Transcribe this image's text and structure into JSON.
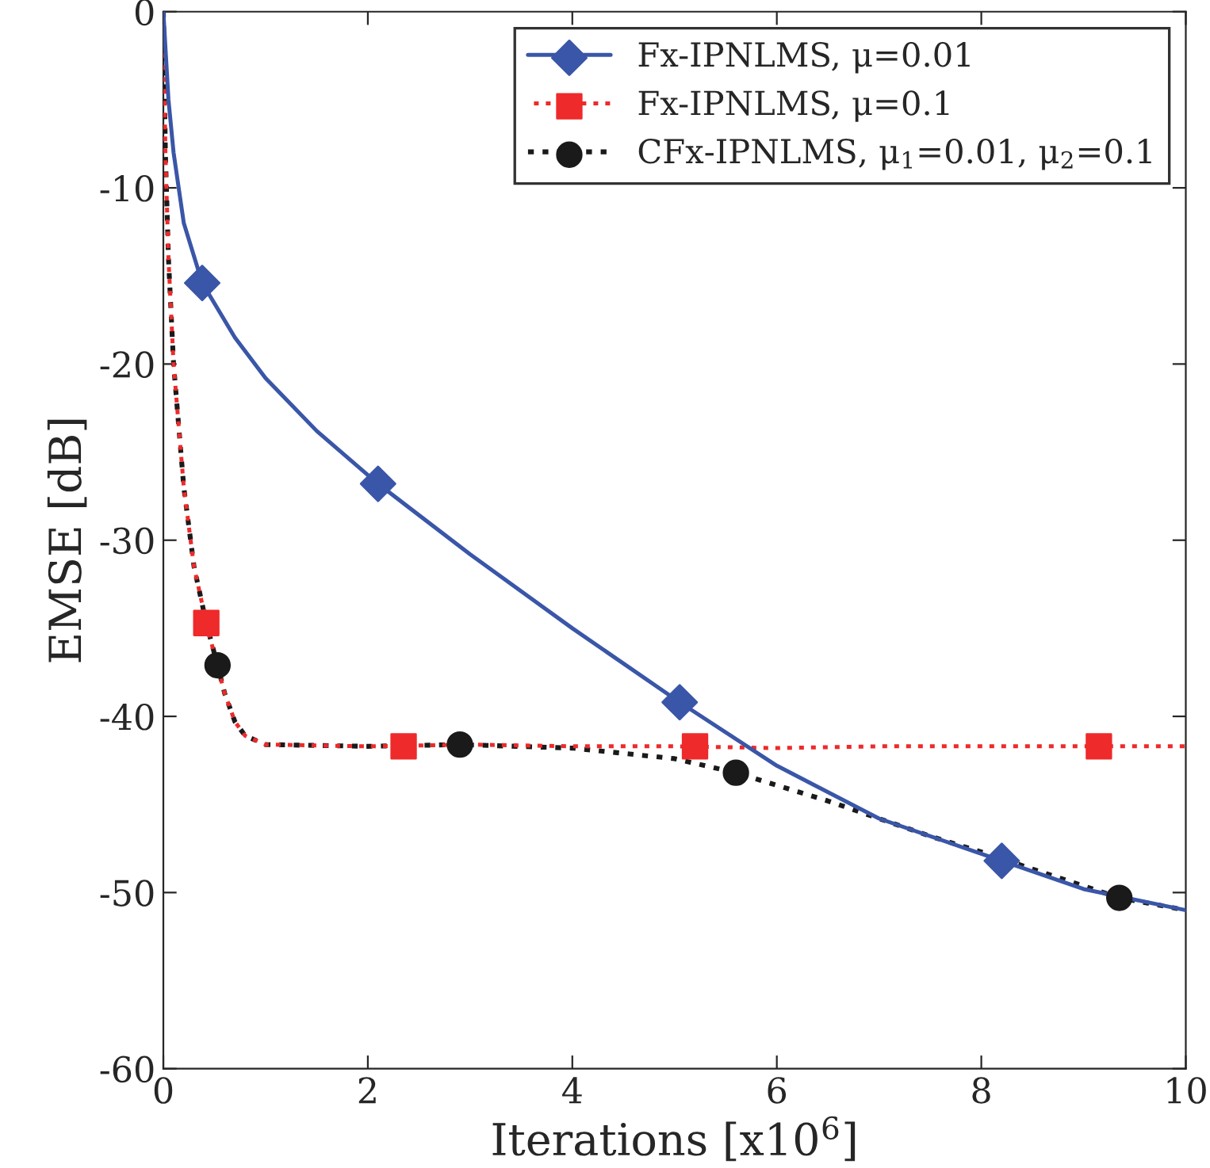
{
  "chart_data": {
    "type": "line",
    "xlabel": "Iterations [x10$^{6}$]",
    "ylabel": "EMSE [dB]",
    "xlim": [
      0,
      10
    ],
    "ylim": [
      -60,
      0
    ],
    "xticks": [
      0,
      2,
      4,
      6,
      8,
      10
    ],
    "yticks": [
      -60,
      -50,
      -40,
      -30,
      -20,
      -10,
      0
    ],
    "grid": false,
    "legend": "top right",
    "series": [
      {
        "name": "Fx-IPNLMS, μ=0.01",
        "color": "#3a56a8",
        "line_style": "solid",
        "x": [
          0,
          0.05,
          0.1,
          0.2,
          0.38,
          0.7,
          1.0,
          1.5,
          2.1,
          3,
          4,
          5.05,
          6,
          7,
          8.2,
          9,
          10
        ],
        "values": [
          0,
          -5,
          -8,
          -12,
          -15.4,
          -18.5,
          -20.8,
          -23.8,
          -26.8,
          -30.8,
          -35,
          -39.2,
          -42.8,
          -45.8,
          -48.2,
          -49.8,
          -51
        ]
      },
      {
        "name": "Fx-IPNLMS, μ=0.1",
        "color": "#ee2a2a",
        "line_style": "dotted",
        "x": [
          0,
          0.02,
          0.05,
          0.1,
          0.2,
          0.3,
          0.42,
          0.5,
          0.6,
          0.7,
          0.8,
          1.0,
          2,
          3,
          4,
          5,
          6,
          7,
          8,
          9,
          10
        ],
        "values": [
          0,
          -8,
          -14,
          -20,
          -27,
          -31.5,
          -34.7,
          -36.5,
          -38.7,
          -40.3,
          -41.1,
          -41.6,
          -41.7,
          -41.6,
          -41.7,
          -41.7,
          -41.8,
          -41.7,
          -41.7,
          -41.7,
          -41.7
        ]
      },
      {
        "name": "CFx-IPNLMS, μ$_{1}$=0.01, μ$_{2}$=0.1",
        "color": "#1a1a1a",
        "line_style": "dotted",
        "x": [
          0,
          0.02,
          0.05,
          0.1,
          0.2,
          0.3,
          0.42,
          0.53,
          0.6,
          0.7,
          0.8,
          1.0,
          2,
          2.9,
          4,
          5,
          5.6,
          6.5,
          7.5,
          8.0,
          9.35,
          10
        ],
        "values": [
          0,
          -8,
          -14,
          -20,
          -27,
          -31.5,
          -34.7,
          -37.1,
          -38.7,
          -40.3,
          -41.1,
          -41.6,
          -41.7,
          -41.6,
          -41.8,
          -42.4,
          -43.2,
          -44.8,
          -46.8,
          -47.7,
          -50.3,
          -51
        ]
      },
      {
        "type": "scatter",
        "color": "#3a56a8",
        "marker": "diamond",
        "x": [
          0.38,
          2.1,
          5.05,
          8.2
        ],
        "values": [
          -15.4,
          -26.8,
          -39.2,
          -48.2
        ]
      },
      {
        "type": "scatter",
        "color": "#ee2a2a",
        "marker": "square",
        "x": [
          0.42,
          2.35,
          5.2,
          9.15
        ],
        "values": [
          -34.7,
          -41.7,
          -41.7,
          -41.7
        ]
      },
      {
        "type": "scatter",
        "color": "#1a1a1a",
        "marker": "circle",
        "x": [
          0.53,
          2.9,
          5.6,
          9.35
        ],
        "values": [
          -37.1,
          -41.6,
          -43.2,
          -50.3
        ]
      }
    ]
  }
}
